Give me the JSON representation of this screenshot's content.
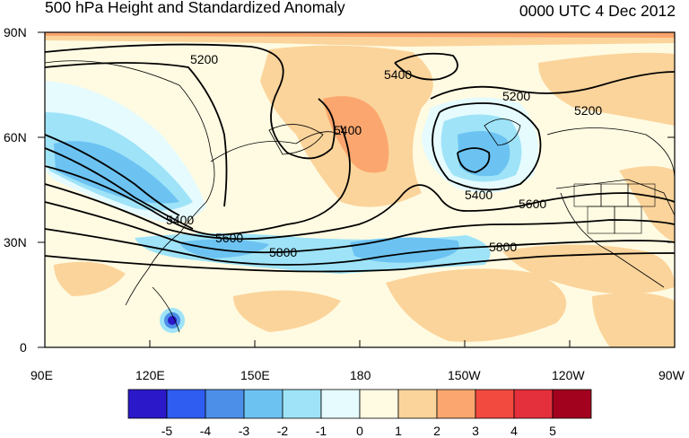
{
  "header": {
    "title": "500 hPa Height and Standardized Anomaly",
    "valid_time": "0000 UTC 4 Dec 2012"
  },
  "axes": {
    "lat_labels": [
      "90N",
      "60N",
      "30N",
      "0"
    ],
    "lon_labels": [
      "90E",
      "120E",
      "150E",
      "180",
      "150W",
      "120W",
      "90W"
    ]
  },
  "contour_labels": [
    "5200",
    "5400",
    "5200",
    "5200",
    "5400",
    "5400",
    "5400",
    "5600",
    "5600",
    "5800",
    "5800"
  ],
  "colorbar": {
    "labels": [
      "-5",
      "-4",
      "-3",
      "-2",
      "-1",
      "0",
      "1",
      "2",
      "3",
      "4",
      "5"
    ],
    "colors": [
      "#2b18c9",
      "#2f5df2",
      "#4c8fe8",
      "#6cc3f2",
      "#9fe3f8",
      "#e5fbfe",
      "#fffbe2",
      "#fbd49b",
      "#fba66e",
      "#f24a3f",
      "#e4303d",
      "#a2021e"
    ]
  },
  "palette": {
    "map_frame": "#000000",
    "contour": "#000000",
    "coastline": "#000000"
  }
}
